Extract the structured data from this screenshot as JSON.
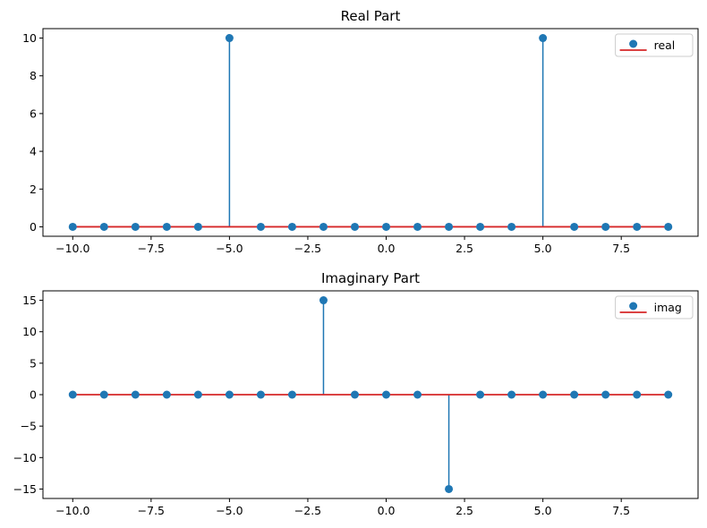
{
  "chart_data": [
    {
      "type": "stem",
      "title": "Real Part",
      "xlabel": "",
      "ylabel": "",
      "x": [
        -10,
        -9,
        -8,
        -7,
        -6,
        -5,
        -4,
        -3,
        -2,
        -1,
        0,
        1,
        2,
        3,
        4,
        5,
        6,
        7,
        8,
        9
      ],
      "series": [
        {
          "name": "real",
          "values": [
            0,
            0,
            0,
            0,
            0,
            10,
            0,
            0,
            0,
            0,
            0,
            0,
            0,
            0,
            0,
            10,
            0,
            0,
            0,
            0
          ]
        }
      ],
      "xlim": [
        -10.95,
        9.95
      ],
      "ylim": [
        -0.5,
        10.5
      ],
      "xticks": [
        -10.0,
        -7.5,
        -5.0,
        -2.5,
        0.0,
        2.5,
        5.0,
        7.5
      ],
      "xtick_labels": [
        "−10.0",
        "−7.5",
        "−5.0",
        "−2.5",
        "0.0",
        "2.5",
        "5.0",
        "7.5"
      ],
      "yticks": [
        0,
        2,
        4,
        6,
        8,
        10
      ],
      "ytick_labels": [
        "0",
        "2",
        "4",
        "6",
        "8",
        "10"
      ],
      "grid": false,
      "legend": "top-right",
      "colors": {
        "marker": "#1f77b4",
        "stem": "#1f77b4",
        "baseline": "#d62728"
      }
    },
    {
      "type": "stem",
      "title": "Imaginary Part",
      "xlabel": "",
      "ylabel": "",
      "x": [
        -10,
        -9,
        -8,
        -7,
        -6,
        -5,
        -4,
        -3,
        -2,
        -1,
        0,
        1,
        2,
        3,
        4,
        5,
        6,
        7,
        8,
        9
      ],
      "series": [
        {
          "name": "imag",
          "values": [
            0,
            0,
            0,
            0,
            0,
            0,
            0,
            0,
            15,
            0,
            0,
            0,
            -15,
            0,
            0,
            0,
            0,
            0,
            0,
            0
          ]
        }
      ],
      "xlim": [
        -10.95,
        9.95
      ],
      "ylim": [
        -16.5,
        16.5
      ],
      "xticks": [
        -10.0,
        -7.5,
        -5.0,
        -2.5,
        0.0,
        2.5,
        5.0,
        7.5
      ],
      "xtick_labels": [
        "−10.0",
        "−7.5",
        "−5.0",
        "−2.5",
        "0.0",
        "2.5",
        "5.0",
        "7.5"
      ],
      "yticks": [
        -15,
        -10,
        -5,
        0,
        5,
        10,
        15
      ],
      "ytick_labels": [
        "−15",
        "−10",
        "−5",
        "0",
        "5",
        "10",
        "15"
      ],
      "grid": false,
      "legend": "top-right",
      "colors": {
        "marker": "#1f77b4",
        "stem": "#1f77b4",
        "baseline": "#d62728"
      }
    }
  ]
}
